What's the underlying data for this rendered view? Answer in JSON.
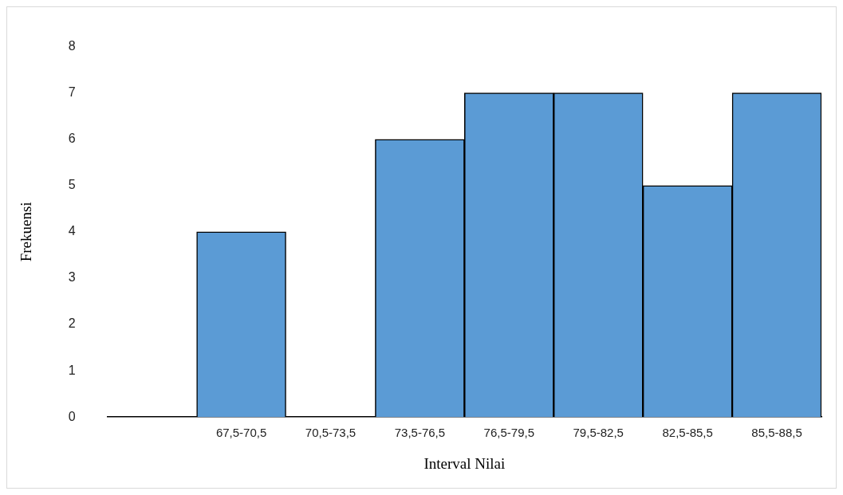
{
  "chart_data": {
    "type": "bar",
    "xlabel": "Interval Nilai",
    "ylabel": "Frekuensi",
    "categories": [
      null,
      "67,5-70,5",
      "70,5-73,5",
      "73,5-76,5",
      "76,5-79,5",
      "79,5-82,5",
      "82,5-85,5",
      "85,5-88,5"
    ],
    "values": [
      0,
      4,
      0,
      6,
      7,
      7,
      5,
      7
    ],
    "color": "#5b9bd5",
    "ylim": [
      0,
      8
    ],
    "yticks": [
      0,
      1,
      2,
      3,
      4,
      5,
      6,
      7,
      8
    ],
    "grid": false,
    "legend": false
  }
}
